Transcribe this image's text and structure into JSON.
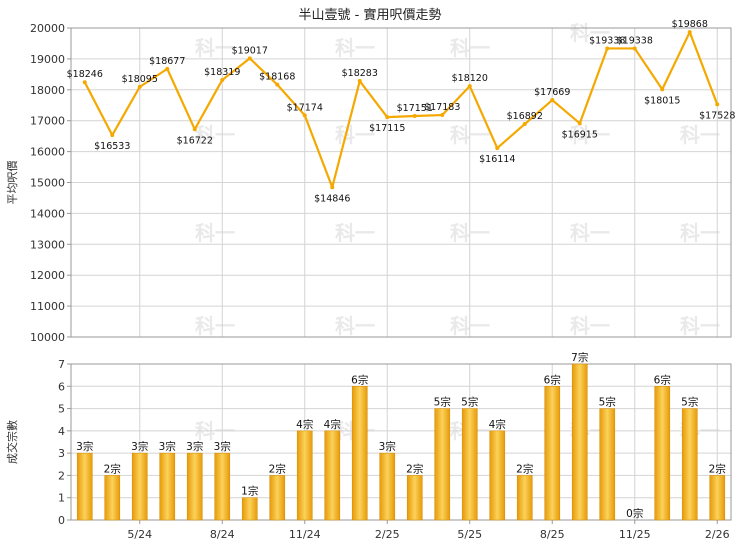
{
  "chart_data": [
    {
      "type": "line",
      "title": "半山壹號 - 實用呎價走勢",
      "ylabel": "平均呎價",
      "ylim": [
        10000,
        20000
      ],
      "yticks": [
        10000,
        11000,
        12000,
        13000,
        14000,
        15000,
        16000,
        17000,
        18000,
        19000,
        20000
      ],
      "line_color": "#f5a800",
      "grid": true,
      "series": [
        {
          "values": [
            18246,
            16533,
            18095,
            18677,
            16722,
            18319,
            19017,
            18168,
            17174,
            14846,
            18283,
            17115,
            17151,
            17183,
            18120,
            16114,
            16892,
            17669,
            16915,
            19338,
            19338,
            18015,
            19868,
            17528
          ],
          "labels": [
            "$18246",
            "$16533",
            "$18095",
            "$18677",
            "$16722",
            "$18319",
            "$19017",
            "$18168",
            "$17174",
            "$14846",
            "$18283",
            "$17115",
            "$17151",
            "$17183",
            "$18120",
            "$16114",
            "$16892",
            "$17669",
            "$16915",
            "$19338",
            "$19338",
            "$18015",
            "$19868",
            "$17528"
          ]
        }
      ]
    },
    {
      "type": "bar",
      "ylabel": "成交宗數",
      "ylim": [
        0,
        7
      ],
      "yticks": [
        0,
        1,
        2,
        3,
        4,
        5,
        6,
        7
      ],
      "bar_color": "#f5b21f",
      "grid": true,
      "x_tick_labels": [
        "5/24",
        "8/24",
        "11/24",
        "2/25",
        "5/25",
        "8/25",
        "11/25",
        "2/26"
      ],
      "values": [
        3,
        2,
        3,
        3,
        3,
        3,
        1,
        2,
        4,
        4,
        6,
        3,
        2,
        5,
        5,
        4,
        2,
        6,
        7,
        5,
        0,
        6,
        5,
        2
      ],
      "labels": [
        "3宗",
        "2宗",
        "3宗",
        "3宗",
        "3宗",
        "3宗",
        "1宗",
        "2宗",
        "4宗",
        "4宗",
        "6宗",
        "3宗",
        "2宗",
        "5宗",
        "5宗",
        "4宗",
        "2宗",
        "6宗",
        "7宗",
        "5宗",
        "0宗",
        "6宗",
        "5宗",
        "2宗"
      ]
    }
  ]
}
